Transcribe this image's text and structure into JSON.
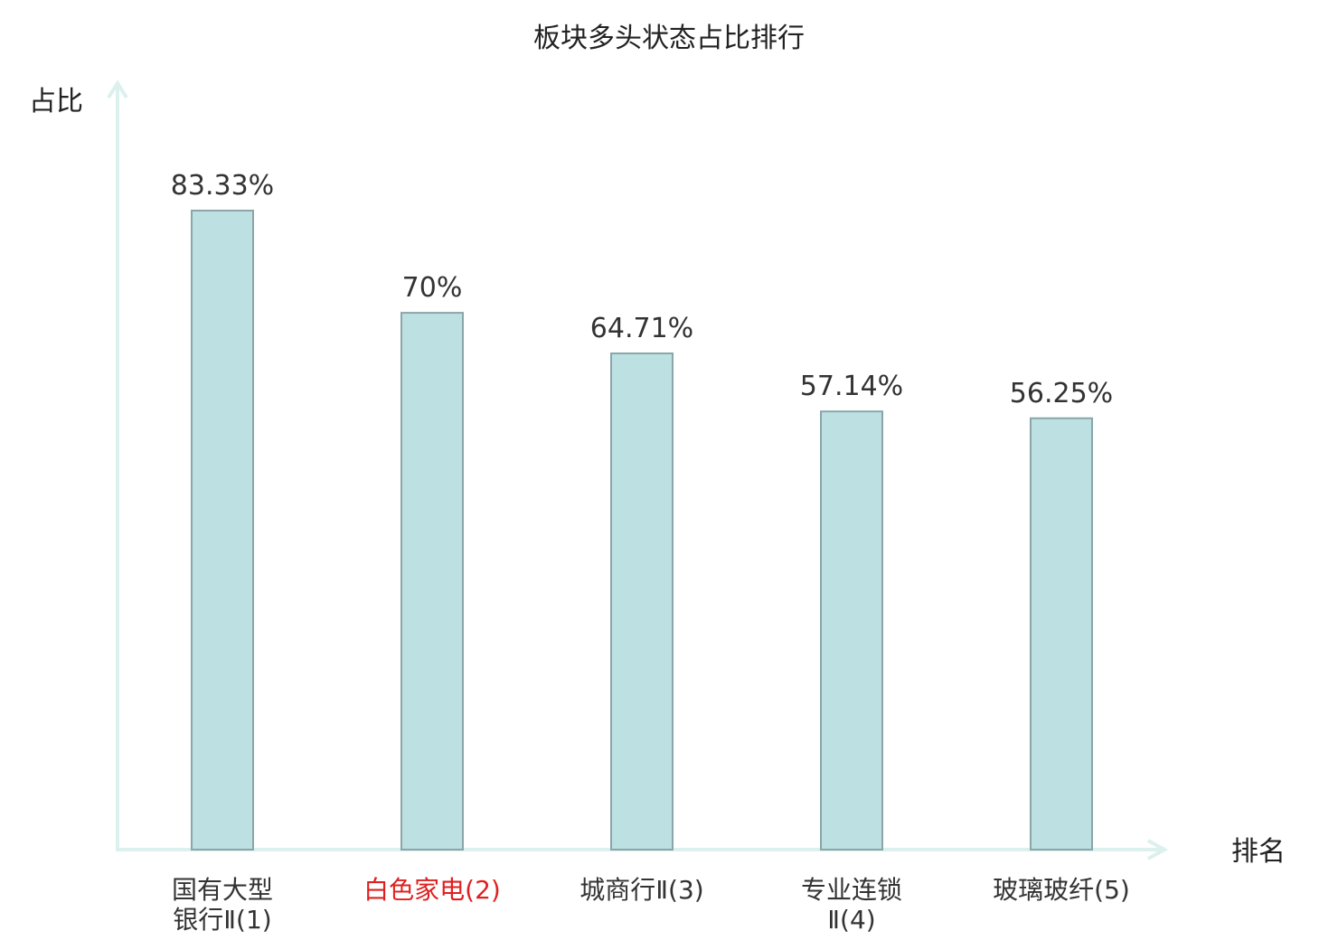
{
  "chart_data": {
    "type": "bar",
    "title": "板块多头状态占比排行",
    "xlabel": "排名",
    "ylabel": "占比",
    "ylim": [
      0,
      100
    ],
    "grid": false,
    "legend": "none",
    "categories": [
      {
        "lines": [
          "国有大型",
          "银行Ⅱ(1)"
        ],
        "color": "#333333"
      },
      {
        "lines": [
          "白色家电(2)"
        ],
        "color": "#e02020"
      },
      {
        "lines": [
          "城商行Ⅱ(3)"
        ],
        "color": "#333333"
      },
      {
        "lines": [
          "专业连锁",
          "Ⅱ(4)"
        ],
        "color": "#333333"
      },
      {
        "lines": [
          "玻璃玻纤(5)"
        ],
        "color": "#333333"
      }
    ],
    "values": [
      83.33,
      70,
      64.71,
      57.14,
      56.25
    ],
    "value_labels": [
      "83.33%",
      "70%",
      "64.71%",
      "57.14%",
      "56.25%"
    ],
    "colors": {
      "bar_fill": "#bde0e2",
      "bar_stroke": "#8aa6a8",
      "axis": "#dcf0ee",
      "text": "#333333",
      "highlight": "#e02020"
    }
  }
}
